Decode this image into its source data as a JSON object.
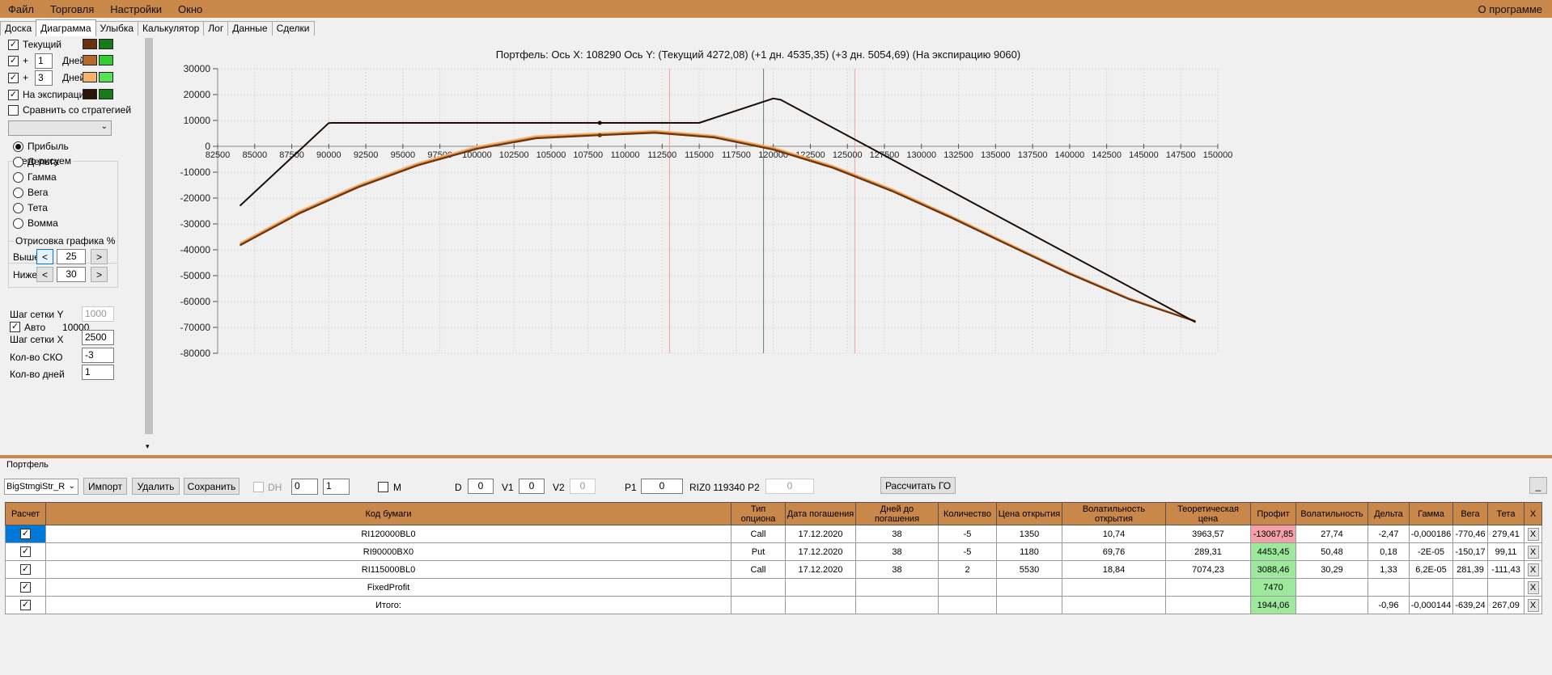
{
  "menu": {
    "file": "Файл",
    "trade": "Торговля",
    "settings": "Настройки",
    "window": "Окно",
    "about": "О программе"
  },
  "tabs": [
    "Доска",
    "Диаграмма",
    "Улыбка",
    "Калькулятор",
    "Лог",
    "Данные",
    "Сделки"
  ],
  "left": {
    "current_label": "Текущий",
    "plus": "+",
    "days1_value": "1",
    "days_label": "Дней",
    "days2_value": "3",
    "expiry_label": "На экспирацию",
    "compare_label": "Сравнить со стратегией",
    "draw_group": "Чего рисуем",
    "radios": [
      "Прибыль",
      "Дельта",
      "Гамма",
      "Вега",
      "Тета",
      "Вомма"
    ],
    "render_group": "Отрисовка графика %",
    "above_label": "Выше",
    "above_value": "25",
    "below_label": "Ниже",
    "below_value": "30",
    "lt": "<",
    "gt": ">",
    "grid_y_label": "Шаг сетки Y",
    "grid_y_value": "1000",
    "auto_label": "Авто",
    "auto_value": "10000",
    "grid_x_label": "Шаг сетки X",
    "grid_x_value": "2500",
    "sko_label": "Кол-во СКО",
    "sko_value": "-3",
    "days_cnt_label": "Кол-во дней",
    "days_cnt_value": "1",
    "colors": {
      "current_a": "#6b3210",
      "current_b": "#1a7a1a",
      "d1_a": "#b46a2a",
      "d1_b": "#32cd32",
      "d3_a": "#f5b46e",
      "d3_b": "#55e055",
      "exp_a": "#2b1408",
      "exp_b": "#1a7a1a"
    }
  },
  "chart_data": {
    "type": "line",
    "title": "Портфель: Ось X: 108290 Ось Y:  (Текущий 4272,08)  (+1 дн. 4535,35)  (+3 дн. 5054,69)  (На экспирацию 9060)",
    "xlim": [
      82500,
      150000
    ],
    "ylim": [
      -80000,
      30000
    ],
    "x_ticks": [
      82500,
      85000,
      87500,
      90000,
      92500,
      95000,
      97500,
      100000,
      102500,
      105000,
      107500,
      110000,
      112500,
      115000,
      117500,
      120000,
      122500,
      125000,
      127500,
      130000,
      132500,
      135000,
      137500,
      140000,
      142500,
      145000,
      147500,
      150000
    ],
    "y_ticks": [
      30000,
      20000,
      10000,
      0,
      -10000,
      -20000,
      -30000,
      -40000,
      -50000,
      -60000,
      -70000,
      -80000
    ],
    "grid": true,
    "vlines": {
      "current_price": 119340,
      "sko_low": 113000,
      "sko_high": 125500
    },
    "series": [
      {
        "name": "На экспирацию",
        "color": "#1a0d05",
        "x": [
          84000,
          90000,
          90250,
          115000,
          115500,
          120000,
          120500,
          148500
        ],
        "y": [
          -23000,
          9000,
          9060,
          9060,
          10000,
          18500,
          18000,
          -68000
        ]
      },
      {
        "name": "Текущий",
        "color": "#6b3210",
        "x": [
          84000,
          88000,
          92000,
          96000,
          100000,
          104000,
          108290,
          112000,
          116000,
          120000,
          124000,
          128000,
          132000,
          136000,
          140000,
          144000,
          148500
        ],
        "y": [
          -38300,
          -26000,
          -15800,
          -7400,
          -1000,
          3100,
          4272,
          5200,
          3400,
          -1300,
          -8300,
          -17300,
          -27600,
          -38500,
          -49300,
          -59100,
          -67700
        ]
      },
      {
        "name": "+1 дн.",
        "color": "#b46a2a",
        "x": [
          84000,
          88000,
          92000,
          96000,
          100000,
          104000,
          108290,
          112000,
          116000,
          120000,
          124000,
          128000,
          132000,
          136000,
          140000,
          144000,
          148500
        ],
        "y": [
          -38000,
          -25700,
          -15500,
          -7100,
          -700,
          3400,
          4535,
          5500,
          3700,
          -1000,
          -8000,
          -17000,
          -27300,
          -38300,
          -49100,
          -58900,
          -67600
        ]
      },
      {
        "name": "+3 дн.",
        "color": "#f5b46e",
        "x": [
          84000,
          88000,
          92000,
          96000,
          100000,
          104000,
          108290,
          112000,
          116000,
          120000,
          124000,
          128000,
          132000,
          136000,
          140000,
          144000,
          148500
        ],
        "y": [
          -37400,
          -25100,
          -14900,
          -6500,
          -100,
          4000,
          5055,
          6000,
          4200,
          -500,
          -7500,
          -16500,
          -26900,
          -37900,
          -48800,
          -58700,
          -67500
        ]
      }
    ]
  },
  "portfolio": {
    "label": "Портфель",
    "strategy": "BigStmgiStr_R",
    "import": "Импорт",
    "delete": "Удалить",
    "save": "Сохранить",
    "dh": "DH",
    "dh_v1": "0",
    "dh_v2": "1",
    "m": "M",
    "d_label": "D",
    "d_value": "0",
    "v1_label": "V1",
    "v1_value": "0",
    "v2_label": "V2",
    "v2_value": "0",
    "p1_label": "P1",
    "p1_value": "0",
    "riz": "RIZ0 119340",
    "p2_label": "P2",
    "p2_value": "0",
    "calc_go": "Рассчитать ГО",
    "minimize": "_"
  },
  "table": {
    "headers": [
      "Расчет",
      "Код бумаги",
      "Тип опциона",
      "Дата погашения",
      "Дней до погашения",
      "Количество",
      "Цена открытия",
      "Волатильность открытия",
      "Теоретическая цена",
      "Профит",
      "Волатильность",
      "Дельта",
      "Гамма",
      "Вега",
      "Тета",
      "X"
    ],
    "rows": [
      [
        "RI120000BL0",
        "Call",
        "17.12.2020",
        "38",
        "-5",
        "1350",
        "10,74",
        "3963,57",
        "-13067,85",
        "27,74",
        "-2,47",
        "-0,000186",
        "-770,46",
        "279,41",
        "X"
      ],
      [
        "RI90000BX0",
        "Put",
        "17.12.2020",
        "38",
        "-5",
        "1180",
        "69,76",
        "289,31",
        "4453,45",
        "50,48",
        "0,18",
        "-2E-05",
        "-150,17",
        "99,11",
        "X"
      ],
      [
        "RI115000BL0",
        "Call",
        "17.12.2020",
        "38",
        "2",
        "5530",
        "18,84",
        "7074,23",
        "3088,46",
        "30,29",
        "1,33",
        "6,2E-05",
        "281,39",
        "-111,43",
        "X"
      ],
      [
        "FixedProfit",
        "",
        "",
        "",
        "",
        "",
        "",
        "",
        "7470",
        "",
        "",
        "",
        "",
        "",
        "X"
      ],
      [
        "Итого:",
        "",
        "",
        "",
        "",
        "",
        "",
        "",
        "1944,06",
        "",
        "-0,96",
        "-0,000144",
        "-639,24",
        "267,09",
        "X"
      ]
    ],
    "profit_colors": [
      "#f4a0a8",
      "#9de89d",
      "#9de89d",
      "#9de89d",
      "#9de89d"
    ]
  }
}
